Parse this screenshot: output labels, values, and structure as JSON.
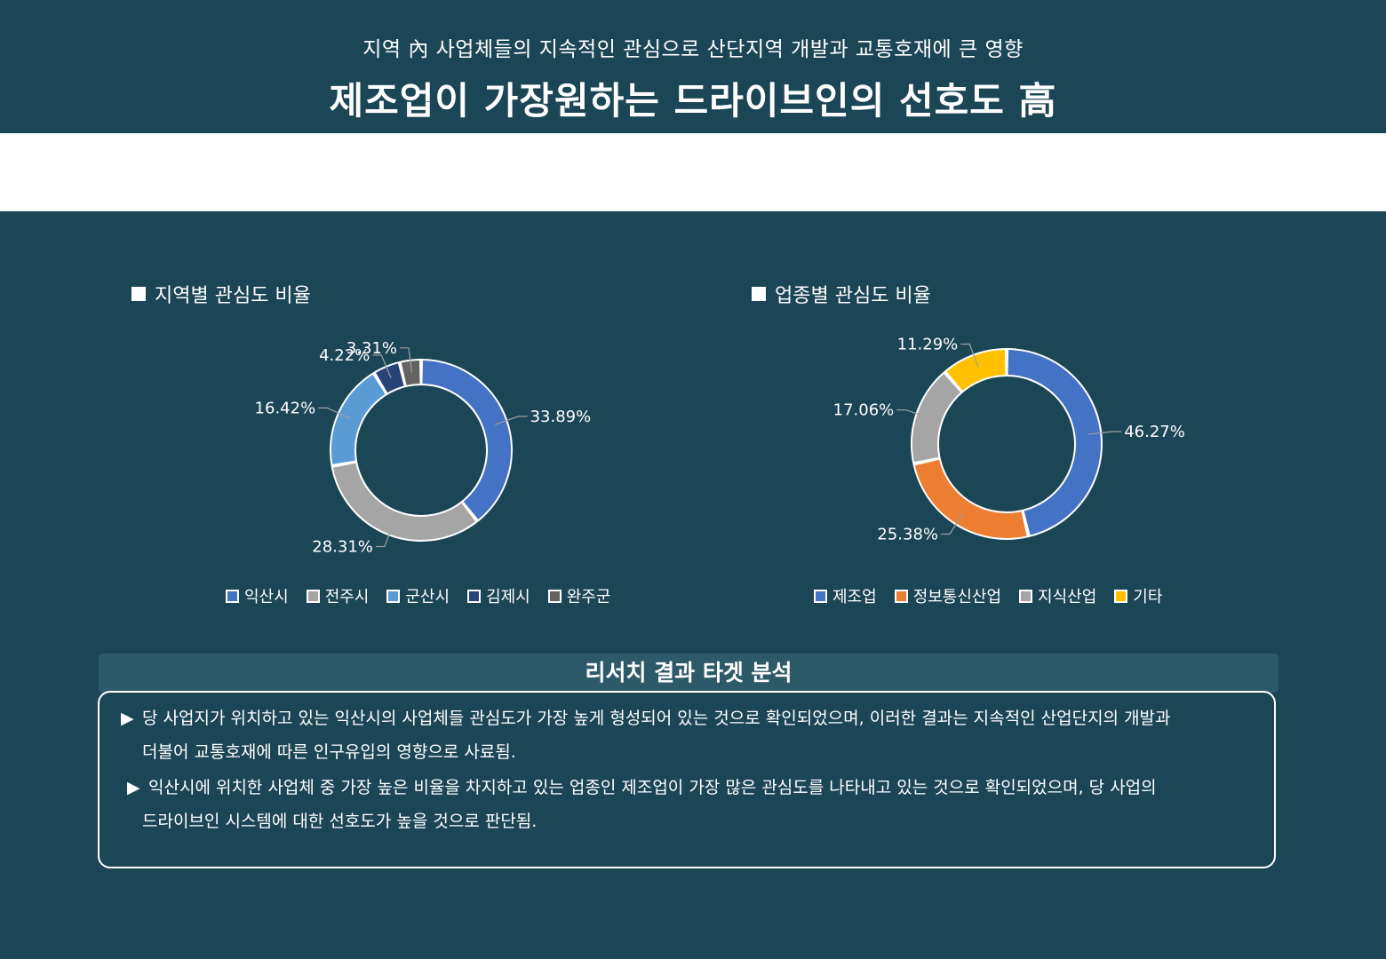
{
  "header": {
    "subtitle": "지역 內 사업체들의 지속적인 관심으로 산단지역 개발과 교통호재에 큰 영향",
    "title": "제조업이 가장원하는 드라이브인의 선호도 高"
  },
  "chart_data": [
    {
      "type": "pie",
      "title": "■ 지역별 관심도 비율",
      "heading": "지역별 관심도 비율",
      "donut": true,
      "legend_position": "bottom",
      "categories": [
        "익산시",
        "전주시",
        "군산시",
        "김제시",
        "완주군"
      ],
      "values": [
        33.89,
        28.31,
        16.42,
        4.22,
        3.31
      ],
      "labels": [
        "33.89%",
        "28.31%",
        "16.42%",
        "4.22%",
        "3.31%"
      ],
      "colors": [
        "#4472c4",
        "#a5a5a5",
        "#5b9bd5",
        "#264478",
        "#636363"
      ]
    },
    {
      "type": "pie",
      "title": "■ 업종별 관심도 비율",
      "heading": "업종별 관심도 비율",
      "donut": true,
      "legend_position": "bottom",
      "categories": [
        "제조업",
        "정보통신산업",
        "지식산업",
        "기타"
      ],
      "values": [
        46.27,
        25.38,
        17.06,
        11.29
      ],
      "labels": [
        "46.27%",
        "25.38%",
        "17.06%",
        "11.29%"
      ],
      "colors": [
        "#4472c4",
        "#ed7d31",
        "#a5a5a5",
        "#ffc000"
      ]
    }
  ],
  "analysis": {
    "heading": "리서치 결과 타겟 분석",
    "bullet": "▶",
    "p1_line1": "당 사업지가 위치하고 있는 익산시의 사업체들 관심도가 가장 높게 형성되어 있는 것으로 확인되었으며, 이러한 결과는 지속적인 산업단지의 개발과",
    "p1_line2": "더불어 교통호재에 따른 인구유입의 영향으로 사료됨.",
    "p2_line1": "익산시에 위치한 사업체 중 가장 높은 비율을 차지하고 있는 업종인 제조업이 가장 많은 관심도를 나타내고 있는 것으로 확인되었으며, 당 사업의",
    "p2_line2": "드라이브인 시스템에 대한 선호도가 높을 것으로 판단됨."
  }
}
